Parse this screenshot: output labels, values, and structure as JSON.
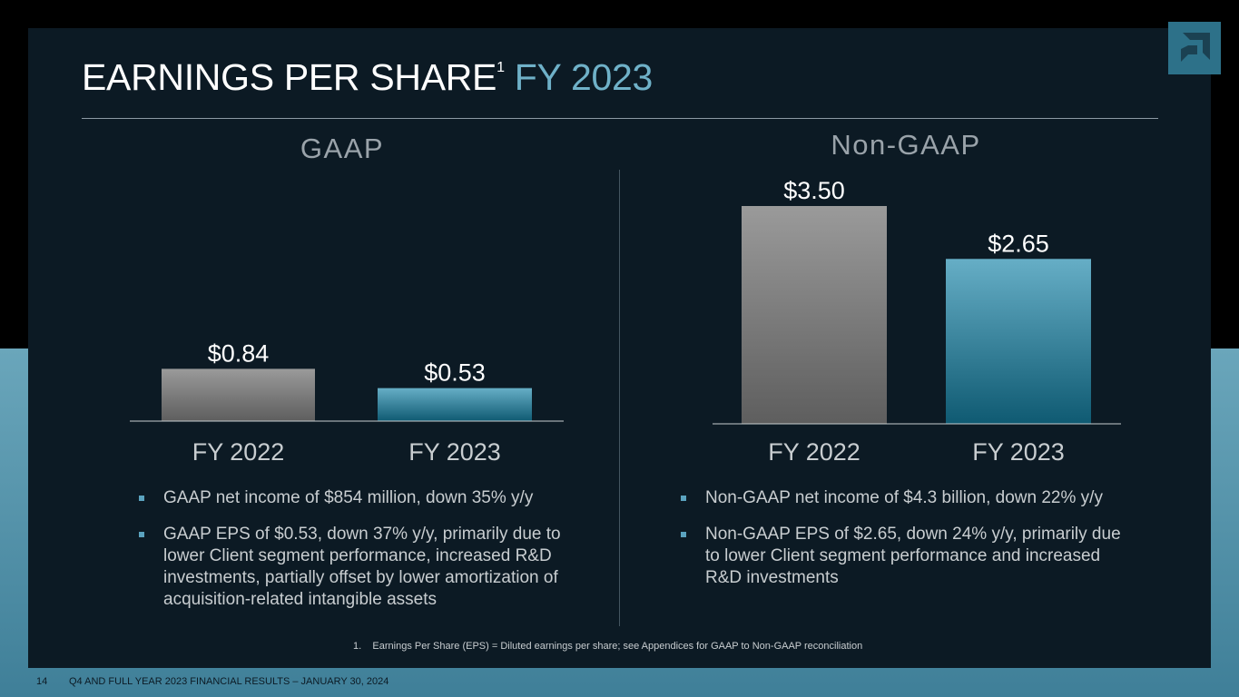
{
  "slide": {
    "title": "EARNINGS PER SHARE",
    "title_superscript": "1",
    "title_accent": "FY 2023",
    "page_number": "14",
    "footer": "Q4 AND FULL YEAR 2023 FINANCIAL RESULTS – JANUARY 30, 2024",
    "footnote": "1.    Earnings Per Share (EPS) = Diluted earnings per share; see Appendices for GAAP to Non-GAAP reconciliation",
    "logo_icon": "amd-logo-icon",
    "colors": {
      "accent": "#6fb1c8",
      "bar_fy2022": "#8a8a8a",
      "bar_fy2023": "#4f9fb9",
      "panel": "#0c1a24"
    }
  },
  "chart_data": [
    {
      "type": "bar",
      "title": "GAAP",
      "categories": [
        "FY 2022",
        "FY 2023"
      ],
      "values": [
        0.84,
        0.53
      ],
      "labels": [
        "$0.84",
        "$0.53"
      ],
      "ylim": [
        0,
        3.5
      ]
    },
    {
      "type": "bar",
      "title": "Non-GAAP",
      "categories": [
        "FY 2022",
        "FY 2023"
      ],
      "values": [
        3.5,
        2.65
      ],
      "labels": [
        "$3.50",
        "$2.65"
      ],
      "ylim": [
        0,
        3.5
      ]
    }
  ],
  "gaap_bullets": [
    "GAAP net income of $854 million, down 35% y/y",
    "GAAP EPS of $0.53, down 37% y/y, primarily due to lower Client segment performance, increased R&D investments, partially offset by lower amortization of acquisition-related intangible assets"
  ],
  "nongaap_bullets": [
    "Non-GAAP net income of $4.3 billion, down 22% y/y",
    "Non-GAAP EPS of $2.65, down 24% y/y, primarily due to lower Client segment performance and increased R&D investments"
  ]
}
